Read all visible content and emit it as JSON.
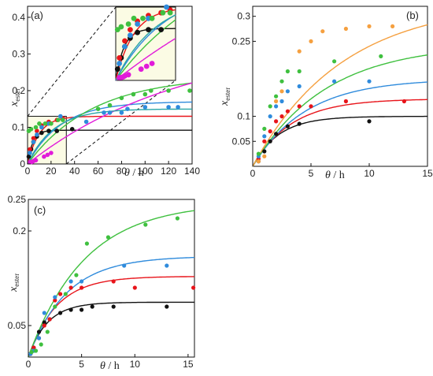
{
  "colors": {
    "black": "#111111",
    "red": "#e8141a",
    "blue": "#2f8bdc",
    "green": "#3fc03f",
    "magenta": "#e11bd9",
    "orange": "#f5a040",
    "teal": "#2aa6a6",
    "inset_bg": "#fbfbe4"
  },
  "chart_data": [
    {
      "panel": "(a)",
      "type": "scatter",
      "xlabel_var": "θ",
      "xlabel_unit": " / h",
      "ylabel_var": "x",
      "ylabel_sub": "ester",
      "xlim": [
        0,
        140
      ],
      "ylim": [
        0,
        0.43
      ],
      "xticks": [
        0,
        20,
        40,
        60,
        80,
        100,
        120,
        140
      ],
      "xtick_labels": [
        "0",
        "20",
        "40",
        "60",
        "80",
        "100",
        "120",
        "140"
      ],
      "yticks": [
        0,
        0.1,
        0.2,
        0.3,
        0.4
      ],
      "ytick_labels": [
        "0",
        "0.1",
        "0.2",
        "0.3",
        "0.4"
      ],
      "zoom_box": {
        "x": [
          0,
          33
        ],
        "y": [
          0,
          0.13
        ]
      },
      "series": [
        {
          "color": "black",
          "points": [
            [
              1,
              0.02
            ],
            [
              3,
              0.04
            ],
            [
              5,
              0.06
            ],
            [
              8,
              0.075
            ],
            [
              12,
              0.085
            ],
            [
              18,
              0.09
            ],
            [
              25,
              0.09
            ],
            [
              38,
              0.095
            ]
          ],
          "curve": {
            "ymax": 0.092,
            "k": 0.22
          }
        },
        {
          "color": "red",
          "points": [
            [
              2,
              0.04
            ],
            [
              5,
              0.07
            ],
            [
              8,
              0.09
            ],
            [
              12,
              0.105
            ],
            [
              18,
              0.115
            ],
            [
              25,
              0.12
            ],
            [
              30,
              0.125
            ]
          ],
          "curve": {
            "ymax": 0.13,
            "k": 0.1
          }
        },
        {
          "color": "blue",
          "points": [
            [
              2,
              0.03
            ],
            [
              5,
              0.06
            ],
            [
              8,
              0.08
            ],
            [
              12,
              0.1
            ],
            [
              18,
              0.11
            ],
            [
              28,
              0.13
            ],
            [
              50,
              0.115
            ],
            [
              65,
              0.14
            ],
            [
              70,
              0.14
            ],
            [
              80,
              0.14
            ],
            [
              85,
              0.15
            ],
            [
              100,
              0.155
            ],
            [
              120,
              0.155
            ],
            [
              128,
              0.155
            ]
          ],
          "curve": {
            "ymax": 0.17,
            "k": 0.035
          }
        },
        {
          "color": "green",
          "points": [
            [
              1,
              0.09
            ],
            [
              3,
              0.095
            ],
            [
              7,
              0.1
            ],
            [
              10,
              0.11
            ],
            [
              15,
              0.11
            ],
            [
              20,
              0.11
            ],
            [
              26,
              0.12
            ],
            [
              30,
              0.12
            ],
            [
              60,
              0.15
            ],
            [
              70,
              0.16
            ],
            [
              80,
              0.18
            ],
            [
              90,
              0.19
            ],
            [
              100,
              0.19
            ],
            [
              105,
              0.2
            ],
            [
              120,
              0.2
            ],
            [
              138,
              0.2
            ]
          ],
          "curve": {
            "ymax": 0.24,
            "k": 0.018
          }
        },
        {
          "color": "magenta",
          "points": [
            [
              2,
              0.005
            ],
            [
              3,
              0.005
            ],
            [
              4,
              0.006
            ],
            [
              5,
              0.008
            ],
            [
              7,
              0.01
            ],
            [
              14,
              0.02
            ],
            [
              17,
              0.025
            ],
            [
              20,
              0.03
            ]
          ],
          "curve": {
            "ymax": 0.34,
            "k": 0.0075
          }
        },
        {
          "color": "teal",
          "points": [],
          "curve": {
            "ymax": 0.15,
            "k": 0.045
          }
        }
      ]
    },
    {
      "panel": "(b)",
      "type": "scatter",
      "xlabel_var": "θ",
      "xlabel_unit": " / h",
      "ylabel_var": "x",
      "ylabel_sub": "ester",
      "xlim": [
        0,
        15
      ],
      "ylim": [
        0,
        0.32
      ],
      "xticks": [
        0,
        5,
        10,
        15
      ],
      "xtick_labels": [
        "0",
        "5",
        "10",
        "15"
      ],
      "yticks": [
        0.05,
        0.1,
        0.25,
        0.3
      ],
      "ytick_labels": [
        "0.05",
        "0.1",
        "0.25",
        "0.3"
      ],
      "series": [
        {
          "color": "black",
          "points": [
            [
              0.5,
              0.01
            ],
            [
              1,
              0.03
            ],
            [
              1.5,
              0.05
            ],
            [
              2,
              0.065
            ],
            [
              3,
              0.08
            ],
            [
              4,
              0.085
            ],
            [
              10,
              0.09
            ]
          ],
          "curve": {
            "ymax": 0.1,
            "k": 0.45
          }
        },
        {
          "color": "red",
          "points": [
            [
              0.5,
              0.015
            ],
            [
              1,
              0.05
            ],
            [
              1.5,
              0.07
            ],
            [
              2,
              0.09
            ],
            [
              2.5,
              0.1
            ],
            [
              3,
              0.11
            ],
            [
              4,
              0.12
            ],
            [
              5,
              0.12
            ],
            [
              8,
              0.13
            ],
            [
              13,
              0.13
            ]
          ],
          "curve": {
            "ymax": 0.135,
            "k": 0.3
          }
        },
        {
          "color": "blue",
          "points": [
            [
              0.5,
              0.02
            ],
            [
              1,
              0.06
            ],
            [
              1.5,
              0.1
            ],
            [
              2,
              0.12
            ],
            [
              2.5,
              0.13
            ],
            [
              3,
              0.15
            ],
            [
              4,
              0.16
            ],
            [
              7,
              0.17
            ],
            [
              10,
              0.17
            ]
          ],
          "curve": {
            "ymax": 0.175,
            "k": 0.22
          }
        },
        {
          "color": "green",
          "points": [
            [
              0.5,
              0.025
            ],
            [
              1,
              0.075
            ],
            [
              1.5,
              0.12
            ],
            [
              2,
              0.14
            ],
            [
              2.5,
              0.17
            ],
            [
              3,
              0.19
            ],
            [
              4,
              0.19
            ],
            [
              7,
              0.21
            ],
            [
              11,
              0.22
            ]
          ],
          "curve": {
            "ymax": 0.245,
            "k": 0.16
          }
        },
        {
          "color": "orange",
          "points": [
            [
              0.5,
              0.01
            ],
            [
              1,
              0.02
            ],
            [
              2,
              0.13
            ],
            [
              2.5,
              0.15
            ],
            [
              4,
              0.23
            ],
            [
              5,
              0.25
            ],
            [
              6,
              0.27
            ],
            [
              8,
              0.275
            ],
            [
              10,
              0.28
            ],
            [
              12,
              0.28
            ]
          ],
          "curve": {
            "ymax": 0.33,
            "k": 0.13
          }
        }
      ]
    },
    {
      "panel": "(c)",
      "type": "scatter",
      "xlabel_var": "θ",
      "xlabel_unit": " / h",
      "ylabel_var": "x",
      "ylabel_sub": "ester",
      "xlim": [
        0,
        15.6
      ],
      "ylim": [
        0,
        0.25
      ],
      "xticks": [
        0,
        5,
        10,
        15
      ],
      "xtick_labels": [
        "0",
        "5",
        "10",
        "15"
      ],
      "yticks": [
        0.05,
        0.2,
        0.25
      ],
      "ytick_labels": [
        "0.05",
        "0.2",
        "0.25"
      ],
      "series": [
        {
          "color": "black",
          "points": [
            [
              0.2,
              0.005
            ],
            [
              0.5,
              0.015
            ],
            [
              1,
              0.04
            ],
            [
              1.5,
              0.055
            ],
            [
              2,
              0.06
            ],
            [
              3,
              0.07
            ],
            [
              4,
              0.075
            ],
            [
              5,
              0.075
            ],
            [
              6,
              0.08
            ],
            [
              8,
              0.08
            ],
            [
              13,
              0.08
            ]
          ],
          "curve": {
            "ymax": 0.087,
            "k": 0.55
          }
        },
        {
          "color": "red",
          "points": [
            [
              0.2,
              0.005
            ],
            [
              0.5,
              0.015
            ],
            [
              1,
              0.03
            ],
            [
              1.5,
              0.05
            ],
            [
              2,
              0.06
            ],
            [
              2.5,
              0.09
            ],
            [
              3,
              0.1
            ],
            [
              4,
              0.11
            ],
            [
              5,
              0.11
            ],
            [
              8,
              0.12
            ],
            [
              10,
              0.11
            ],
            [
              15.5,
              0.11
            ]
          ],
          "curve": {
            "ymax": 0.128,
            "k": 0.38
          }
        },
        {
          "color": "blue",
          "points": [
            [
              0.2,
              0.005
            ],
            [
              0.5,
              0.01
            ],
            [
              1,
              0.03
            ],
            [
              1.5,
              0.07
            ],
            [
              2.5,
              0.095
            ],
            [
              4,
              0.12
            ],
            [
              5,
              0.12
            ],
            [
              9,
              0.145
            ],
            [
              13,
              0.145
            ]
          ],
          "curve": {
            "ymax": 0.16,
            "k": 0.28
          }
        },
        {
          "color": "green",
          "points": [
            [
              0.3,
              0.008
            ],
            [
              0.7,
              0.01
            ],
            [
              1.2,
              0.02
            ],
            [
              1.8,
              0.04
            ],
            [
              2.5,
              0.08
            ],
            [
              3.5,
              0.1
            ],
            [
              4.5,
              0.13
            ],
            [
              5.5,
              0.18
            ],
            [
              7.5,
              0.19
            ],
            [
              11,
              0.21
            ],
            [
              14,
              0.22
            ]
          ],
          "curve": {
            "ymax": 0.245,
            "k": 0.19
          }
        }
      ]
    }
  ]
}
